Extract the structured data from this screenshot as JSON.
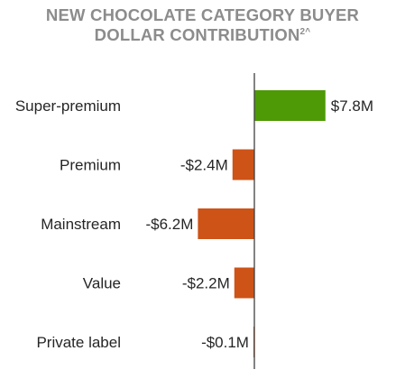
{
  "chart_data": {
    "type": "bar",
    "orientation": "horizontal",
    "title": "NEW CHOCOLATE CATEGORY BUYER",
    "title_line2": "DOLLAR CONTRIBUTION",
    "title_superscript": "2^",
    "categories": [
      "Super-premium",
      "Premium",
      "Mainstream",
      "Value",
      "Private label"
    ],
    "values": [
      7.8,
      -2.4,
      -6.2,
      -2.2,
      -0.1
    ],
    "data_labels": [
      "$7.8M",
      "-$2.4M",
      "-$6.2M",
      "-$2.2M",
      "-$0.1M"
    ],
    "unit": "$M",
    "colors": {
      "positive": "#4e9a06",
      "negative": "#cd5317",
      "title": "#8c8c8c",
      "label": "#262626",
      "axis": "#404040"
    },
    "grid": false,
    "legend": "none"
  }
}
